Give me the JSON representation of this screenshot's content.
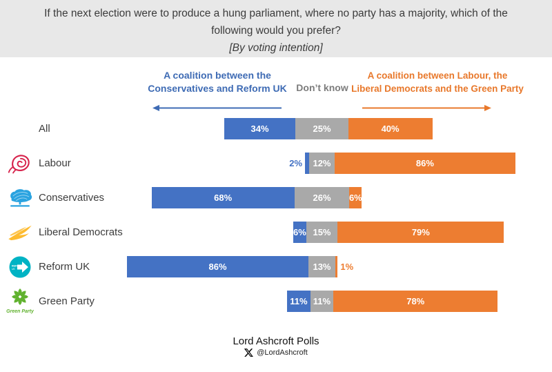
{
  "title": {
    "line1": "If the next election were to produce a hung parliament, where no party has a majority, which of the",
    "line2": "following would you prefer?",
    "line3": "[By voting intention]"
  },
  "legend": {
    "left": {
      "line1": "A coalition between the",
      "line2": "Conservatives and Reform UK",
      "color": "#4472C4"
    },
    "center": {
      "label": "Don’t know",
      "color": "#7c7c7c"
    },
    "right": {
      "line1": "A coalition between Labour, the",
      "line2": "Liberal Democrats and the Green Party",
      "color": "#ED7D31"
    }
  },
  "chart_data": {
    "type": "bar",
    "variant": "diverging-stacked-horizontal",
    "unit": "%",
    "categories": [
      "All",
      "Labour",
      "Conservatives",
      "Liberal Democrats",
      "Reform UK",
      "Green Party"
    ],
    "series": [
      {
        "name": "A coalition between the Conservatives and Reform UK",
        "color": "#4472C4",
        "values": [
          34,
          2,
          68,
          6,
          86,
          11
        ]
      },
      {
        "name": "Don’t know",
        "color": "#A9A9A9",
        "values": [
          25,
          12,
          26,
          15,
          13,
          11
        ]
      },
      {
        "name": "A coalition between Labour, the Liberal Democrats and the Green Party",
        "color": "#ED7D31",
        "values": [
          40,
          86,
          6,
          79,
          1,
          78
        ]
      }
    ],
    "layout": {
      "dont_know_centered_on_axis": true,
      "legend_position": "top",
      "grid": false
    }
  },
  "footer": {
    "title": "Lord Ashcroft Polls",
    "handle": "@LordAshcroft"
  },
  "colors": {
    "header_band": "#E8E8E8",
    "bar_blue": "#4472C4",
    "bar_gray": "#A9A9A9",
    "bar_orange": "#ED7D31",
    "legend_blue_text": "#3E6BB4",
    "legend_orange_text": "#E8782B"
  }
}
